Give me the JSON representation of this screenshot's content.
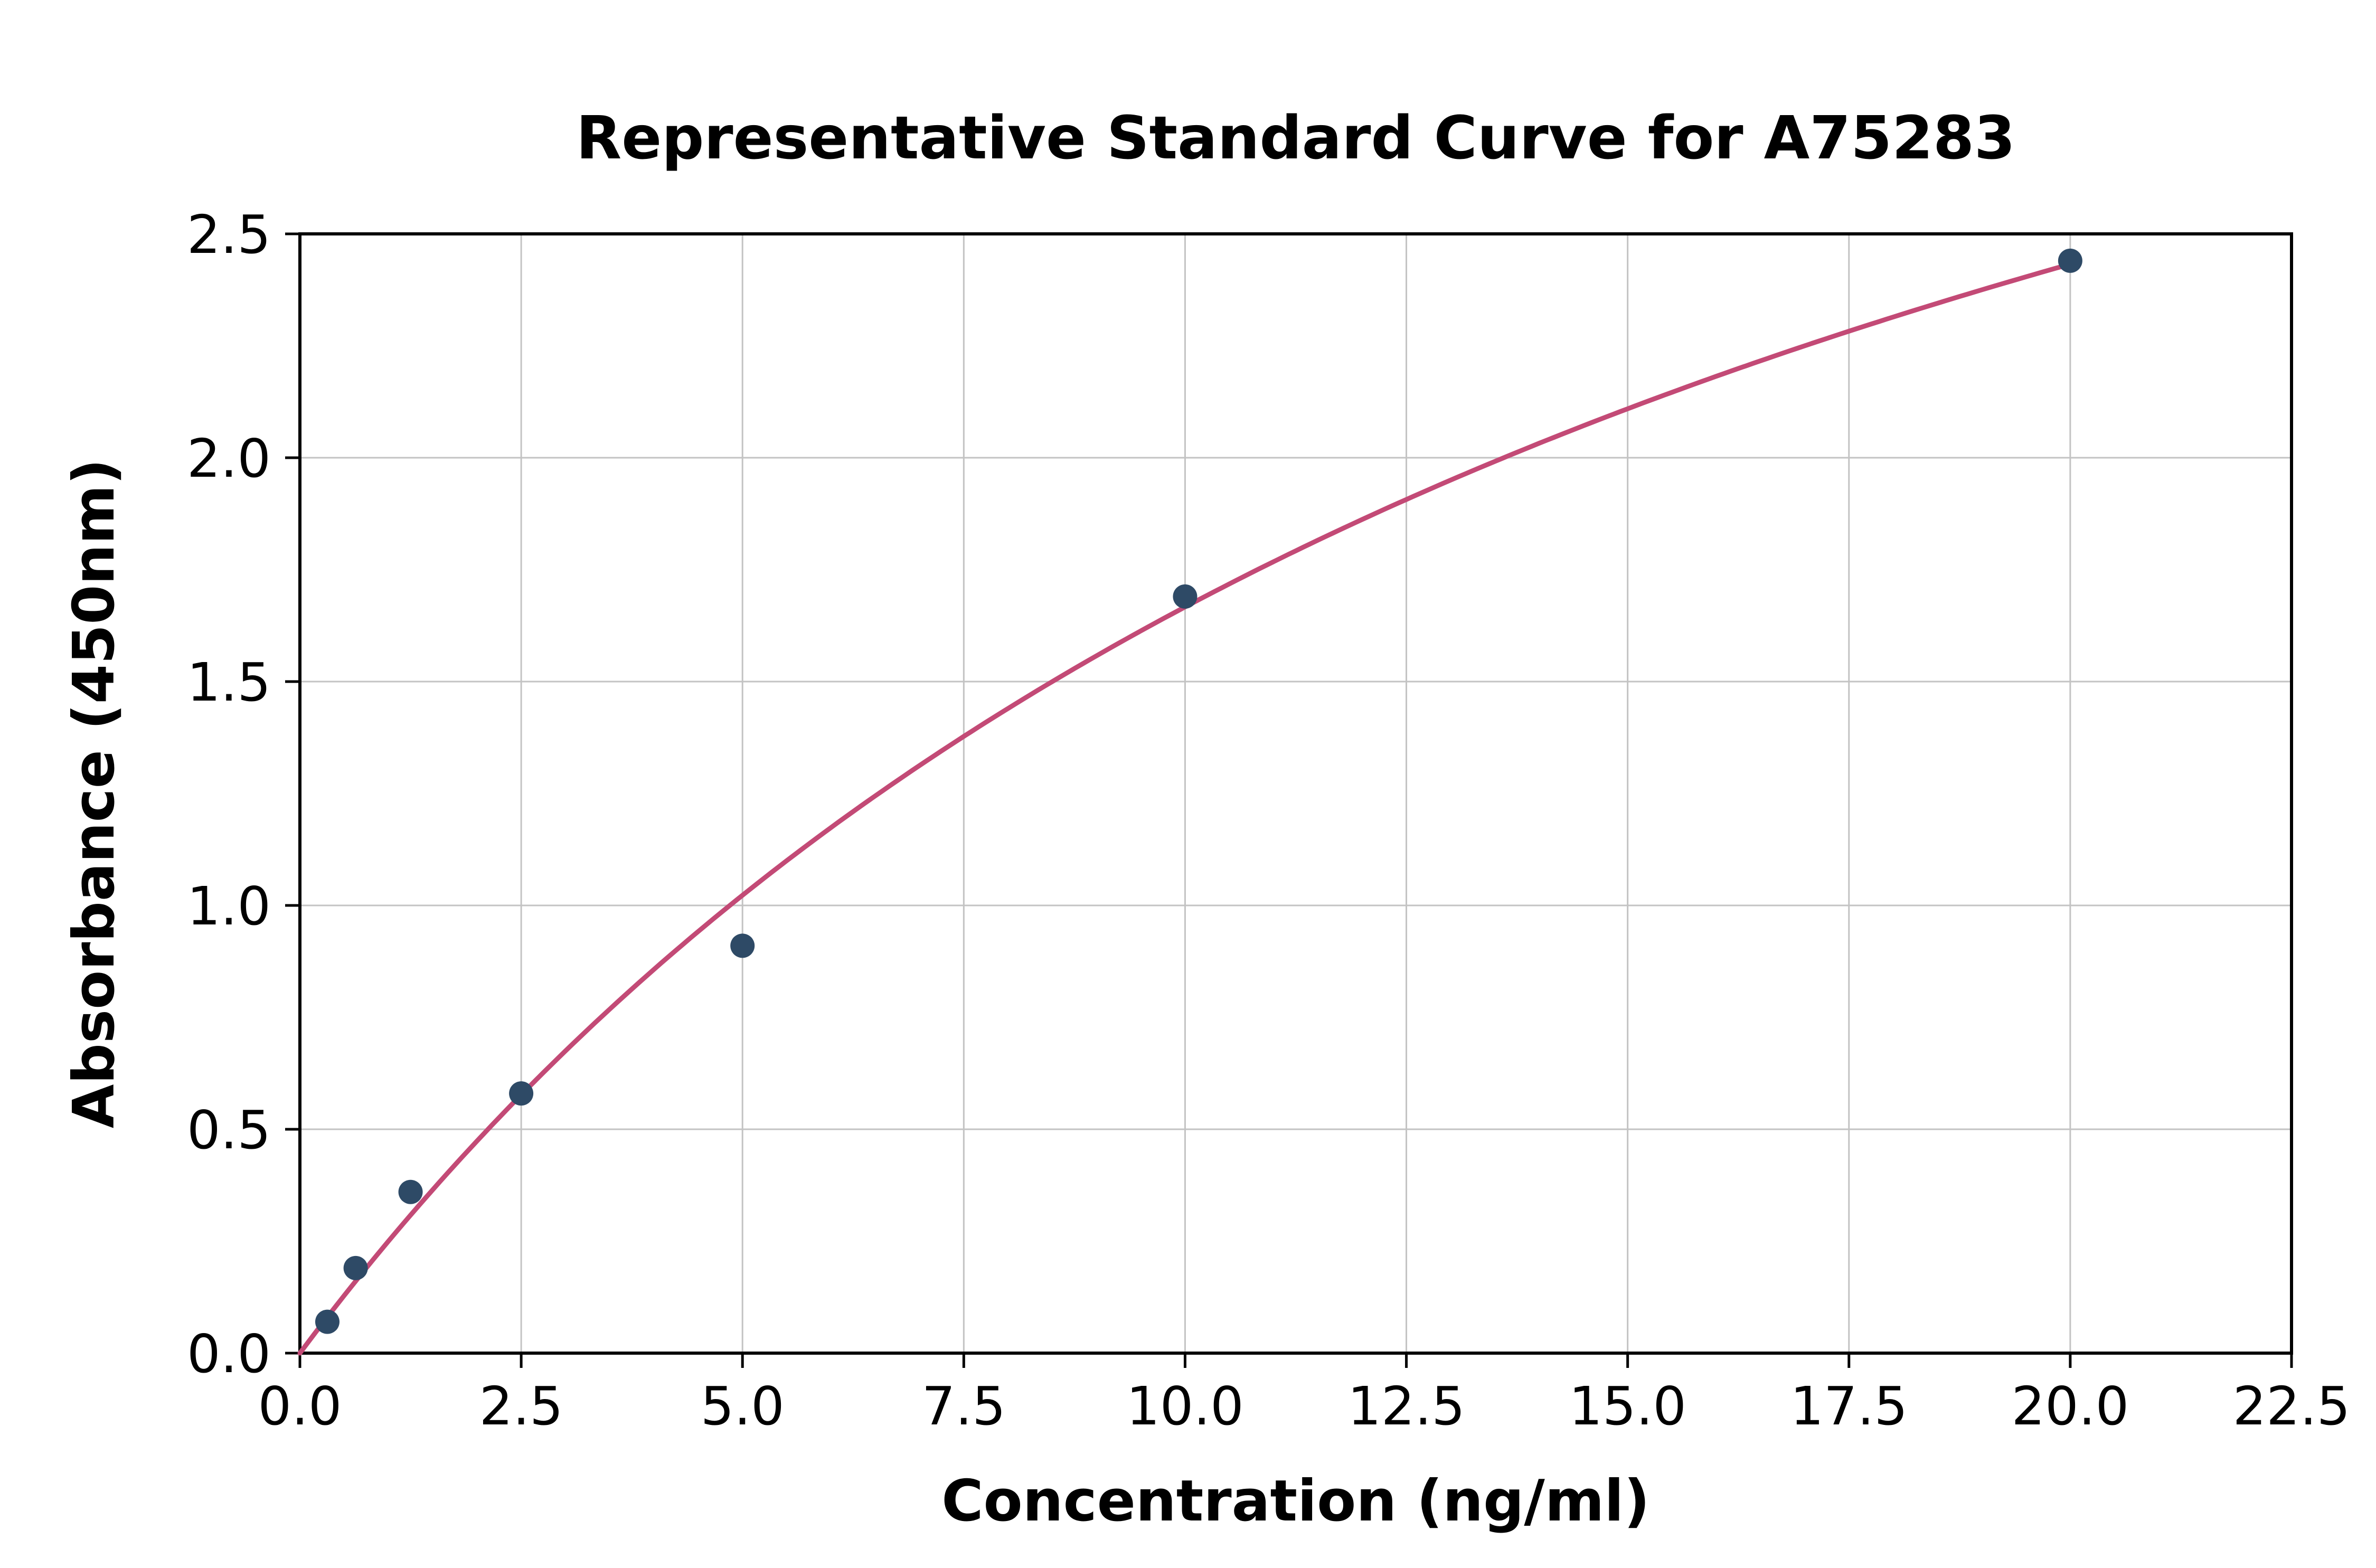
{
  "chart_data": {
    "type": "scatter",
    "title": "Representative Standard Curve for A75283",
    "xlabel": "Concentration (ng/ml)",
    "ylabel": "Absorbance (450nm)",
    "xlim": [
      0,
      22.5
    ],
    "ylim": [
      0,
      2.5
    ],
    "xticks": [
      0.0,
      2.5,
      5.0,
      7.5,
      10.0,
      12.5,
      15.0,
      17.5,
      20.0,
      22.5
    ],
    "yticks": [
      0.0,
      0.5,
      1.0,
      1.5,
      2.0,
      2.5
    ],
    "grid": true,
    "legend": "none",
    "points": [
      {
        "x": 0.31,
        "y": 0.07
      },
      {
        "x": 0.63,
        "y": 0.19
      },
      {
        "x": 1.25,
        "y": 0.36
      },
      {
        "x": 2.5,
        "y": 0.58
      },
      {
        "x": 5.0,
        "y": 0.91
      },
      {
        "x": 10.0,
        "y": 1.69
      },
      {
        "x": 20.0,
        "y": 2.44
      }
    ],
    "fit_curve": {
      "model": "y = a*x / (b + x)",
      "a": 4.5,
      "b": 17.0,
      "x_start": 0,
      "x_end": 20
    },
    "colors": {
      "points": "#2e4a66",
      "curve": "#c34a76",
      "grid": "#c3c3c3",
      "axis": "#000000",
      "background": "#ffffff"
    }
  }
}
